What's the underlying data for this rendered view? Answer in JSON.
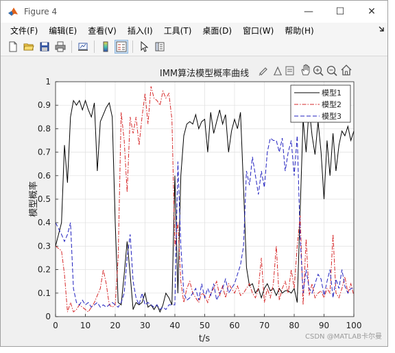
{
  "window": {
    "title": "Figure 4"
  },
  "window_controls": {
    "minimize": "—",
    "maximize": "☐",
    "close": "✕"
  },
  "menu": [
    "文件(F)",
    "编辑(E)",
    "查看(V)",
    "插入(I)",
    "工具(T)",
    "桌面(D)",
    "窗口(W)",
    "帮助(H)"
  ],
  "toolbar": [
    "new-figure-icon",
    "open-folder-icon",
    "save-icon",
    "print-icon",
    "link-plot-icon",
    "colorbar-icon",
    "legend-icon",
    "pointer-icon",
    "property-inspector-icon"
  ],
  "axes_toolbar": [
    "brush-icon",
    "data-tips-icon",
    "restore-view-icon",
    "pan-icon",
    "zoom-in-icon",
    "zoom-out-icon",
    "home-icon"
  ],
  "watermark": "CSDN @MATLAB卡尔曼",
  "chart_data": {
    "type": "line",
    "title": "IMM算法模型概率曲线",
    "xlabel": "t/s",
    "ylabel": "模型概率",
    "xlim": [
      0,
      100
    ],
    "ylim": [
      0,
      1
    ],
    "xticks": [
      0,
      10,
      20,
      30,
      40,
      50,
      60,
      70,
      80,
      90,
      100
    ],
    "yticks": [
      0,
      0.1,
      0.2,
      0.3,
      0.4,
      0.5,
      0.6,
      0.7,
      0.8,
      0.9,
      1
    ],
    "grid": true,
    "legend_position": "top-right",
    "series": [
      {
        "name": "模型1",
        "color": "#000000",
        "style": "solid",
        "x": [
          0,
          2,
          3,
          4,
          5,
          6,
          7,
          8,
          9,
          10,
          11,
          12,
          13,
          14,
          15,
          16,
          17,
          18,
          19,
          20,
          21,
          22,
          23,
          24,
          25,
          26,
          27,
          28,
          29,
          30,
          31,
          32,
          33,
          34,
          35,
          36,
          37,
          38,
          39,
          40,
          41,
          42,
          43,
          44,
          45,
          46,
          47,
          48,
          49,
          50,
          51,
          52,
          53,
          54,
          55,
          56,
          57,
          58,
          59,
          60,
          61,
          62,
          63,
          64,
          65,
          66,
          67,
          68,
          69,
          70,
          71,
          72,
          73,
          74,
          75,
          76,
          77,
          78,
          79,
          80,
          81,
          82,
          83,
          84,
          85,
          86,
          87,
          88,
          89,
          90,
          91,
          92,
          93,
          94,
          95,
          96,
          97,
          98,
          99,
          100
        ],
        "y": [
          0.3,
          0.4,
          0.73,
          0.57,
          0.85,
          0.92,
          0.9,
          0.92,
          0.88,
          0.92,
          0.88,
          0.85,
          0.91,
          0.62,
          0.83,
          0.86,
          0.89,
          0.91,
          0.85,
          0.4,
          0.06,
          0.05,
          0.18,
          0.32,
          0.18,
          0.03,
          0.06,
          0.05,
          0.06,
          0.1,
          0.04,
          0.05,
          0.03,
          0.05,
          0.02,
          0.05,
          0.1,
          0.08,
          0.05,
          0.6,
          0.1,
          0.6,
          0.77,
          0.82,
          0.83,
          0.82,
          0.86,
          0.8,
          0.83,
          0.84,
          0.7,
          0.87,
          0.78,
          0.83,
          0.88,
          0.82,
          0.86,
          0.7,
          0.79,
          0.84,
          0.8,
          0.87,
          0.55,
          0.21,
          0.13,
          0.14,
          0.1,
          0.12,
          0.08,
          0.12,
          0.14,
          0.11,
          0.12,
          0.09,
          0.12,
          0.1,
          0.11,
          0.11,
          0.1,
          0.12,
          0.06,
          0.45,
          0.84,
          0.7,
          0.89,
          0.77,
          0.69,
          0.83,
          0.7,
          0.5,
          0.75,
          0.6,
          0.78,
          0.62,
          0.73,
          0.79,
          0.77,
          0.81,
          0.75,
          0.79
        ]
      },
      {
        "name": "模型2",
        "color": "#d62728",
        "style": "dashdot",
        "x": [
          0,
          2,
          3,
          4,
          5,
          6,
          7,
          8,
          9,
          10,
          11,
          12,
          13,
          14,
          15,
          16,
          17,
          18,
          19,
          20,
          21,
          22,
          23,
          24,
          25,
          26,
          27,
          28,
          29,
          30,
          31,
          32,
          33,
          34,
          35,
          36,
          37,
          38,
          39,
          40,
          41,
          42,
          43,
          44,
          45,
          46,
          47,
          48,
          49,
          50,
          51,
          52,
          53,
          54,
          55,
          56,
          57,
          58,
          59,
          60,
          61,
          62,
          63,
          64,
          65,
          66,
          67,
          68,
          69,
          70,
          71,
          72,
          73,
          74,
          75,
          76,
          77,
          78,
          79,
          80,
          81,
          82,
          83,
          84,
          85,
          86,
          87,
          88,
          89,
          90,
          91,
          92,
          93,
          94,
          95,
          96,
          97,
          98,
          99,
          100
        ],
        "y": [
          0.3,
          0.28,
          0.18,
          0.02,
          0.06,
          0.02,
          0.03,
          0.05,
          0.04,
          0.03,
          0.02,
          0.04,
          0.06,
          0.09,
          0.12,
          0.2,
          0.14,
          0.05,
          0.04,
          0.05,
          0.25,
          0.87,
          0.75,
          0.53,
          0.85,
          0.78,
          0.85,
          0.73,
          0.85,
          0.95,
          0.82,
          0.98,
          0.93,
          0.92,
          0.9,
          0.96,
          0.93,
          0.95,
          0.84,
          0.3,
          0.4,
          0.15,
          0.06,
          0.12,
          0.15,
          0.1,
          0.08,
          0.06,
          0.1,
          0.09,
          0.06,
          0.1,
          0.12,
          0.15,
          0.09,
          0.13,
          0.08,
          0.14,
          0.12,
          0.1,
          0.13,
          0.09,
          0.1,
          0.12,
          0.14,
          0.1,
          0.08,
          0.12,
          0.25,
          0.06,
          0.12,
          0.08,
          0.14,
          0.3,
          0.07,
          0.12,
          0.15,
          0.1,
          0.2,
          0.12,
          0.3,
          0.43,
          0.05,
          0.33,
          0.09,
          0.14,
          0.08,
          0.1,
          0.11,
          0.08,
          0.12,
          0.1,
          0.35,
          0.1,
          0.08,
          0.12,
          0.17,
          0.1,
          0.14,
          0.09
        ]
      },
      {
        "name": "模型3",
        "color": "#1f1fbf",
        "style": "dashed",
        "x": [
          0,
          2,
          3,
          4,
          5,
          6,
          7,
          8,
          9,
          10,
          11,
          12,
          13,
          14,
          15,
          16,
          17,
          18,
          19,
          20,
          21,
          22,
          23,
          24,
          25,
          26,
          27,
          28,
          29,
          30,
          31,
          32,
          33,
          34,
          35,
          36,
          37,
          38,
          39,
          40,
          41,
          42,
          43,
          44,
          45,
          46,
          47,
          48,
          49,
          50,
          51,
          52,
          53,
          54,
          55,
          56,
          57,
          58,
          59,
          60,
          61,
          62,
          63,
          64,
          65,
          66,
          67,
          68,
          69,
          70,
          71,
          72,
          73,
          74,
          75,
          76,
          77,
          78,
          79,
          80,
          81,
          82,
          83,
          84,
          85,
          86,
          87,
          88,
          89,
          90,
          91,
          92,
          93,
          94,
          95,
          96,
          97,
          98,
          99,
          100
        ],
        "y": [
          0.4,
          0.35,
          0.32,
          0.35,
          0.4,
          0.12,
          0.06,
          0.05,
          0.07,
          0.05,
          0.06,
          0.04,
          0.05,
          0.06,
          0.04,
          0.05,
          0.04,
          0.05,
          0.06,
          0.05,
          0.04,
          0.06,
          0.1,
          0.25,
          0.35,
          0.15,
          0.08,
          0.05,
          0.1,
          0.05,
          0.06,
          0.05,
          0.04,
          0.05,
          0.03,
          0.04,
          0.03,
          0.05,
          0.05,
          0.05,
          0.66,
          0.3,
          0.1,
          0.07,
          0.08,
          0.1,
          0.12,
          0.07,
          0.14,
          0.08,
          0.12,
          0.09,
          0.14,
          0.07,
          0.1,
          0.12,
          0.16,
          0.1,
          0.12,
          0.14,
          0.18,
          0.22,
          0.3,
          0.62,
          0.56,
          0.68,
          0.6,
          0.52,
          0.62,
          0.55,
          0.7,
          0.76,
          0.75,
          0.75,
          0.7,
          0.76,
          0.62,
          0.7,
          0.75,
          0.6,
          0.77,
          0.34,
          0.1,
          0.2,
          0.12,
          0.1,
          0.14,
          0.18,
          0.16,
          0.09,
          0.15,
          0.2,
          0.08,
          0.16,
          0.12,
          0.2,
          0.13,
          0.1,
          0.12,
          0.12
        ]
      }
    ]
  }
}
